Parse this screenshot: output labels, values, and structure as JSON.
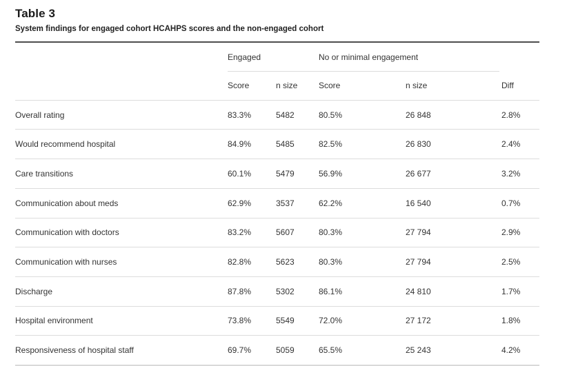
{
  "table": {
    "title": "Table 3",
    "caption": "System findings for engaged cohort HCAHPS scores and the non-engaged cohort",
    "group_headers": {
      "engaged": "Engaged",
      "non_engaged": "No or minimal engagement"
    },
    "column_headers": {
      "engaged_score": "Score",
      "engaged_n": "n size",
      "non_engaged_score": "Score",
      "non_engaged_n": "n size",
      "diff": "Diff"
    },
    "rows": [
      {
        "label": "Overall rating",
        "cells": [
          "83.3%",
          "5482",
          "80.5%",
          "26 848",
          "2.8%"
        ]
      },
      {
        "label": "Would recommend hospital",
        "cells": [
          "84.9%",
          "5485",
          "82.5%",
          "26 830",
          "2.4%"
        ]
      },
      {
        "label": "Care transitions",
        "cells": [
          "60.1%",
          "5479",
          "56.9%",
          "26 677",
          "3.2%"
        ]
      },
      {
        "label": "Communication about meds",
        "cells": [
          "62.9%",
          "3537",
          "62.2%",
          "16 540",
          "0.7%"
        ]
      },
      {
        "label": "Communication with doctors",
        "cells": [
          "83.2%",
          "5607",
          "80.3%",
          "27 794",
          "2.9%"
        ]
      },
      {
        "label": "Communication with nurses",
        "cells": [
          "82.8%",
          "5623",
          "80.3%",
          "27 794",
          "2.5%"
        ]
      },
      {
        "label": "Discharge",
        "cells": [
          "87.8%",
          "5302",
          "86.1%",
          "24 810",
          "1.7%"
        ]
      },
      {
        "label": "Hospital environment",
        "cells": [
          "73.8%",
          "5549",
          "72.0%",
          "27 172",
          "1.8%"
        ]
      },
      {
        "label": "Responsiveness of hospital staff",
        "cells": [
          "69.7%",
          "5059",
          "65.5%",
          "25 243",
          "4.2%"
        ]
      }
    ]
  },
  "colors": {
    "rule_dark": "#4d4d4d",
    "rule_light": "#dcdcdc",
    "text": "#333333"
  }
}
